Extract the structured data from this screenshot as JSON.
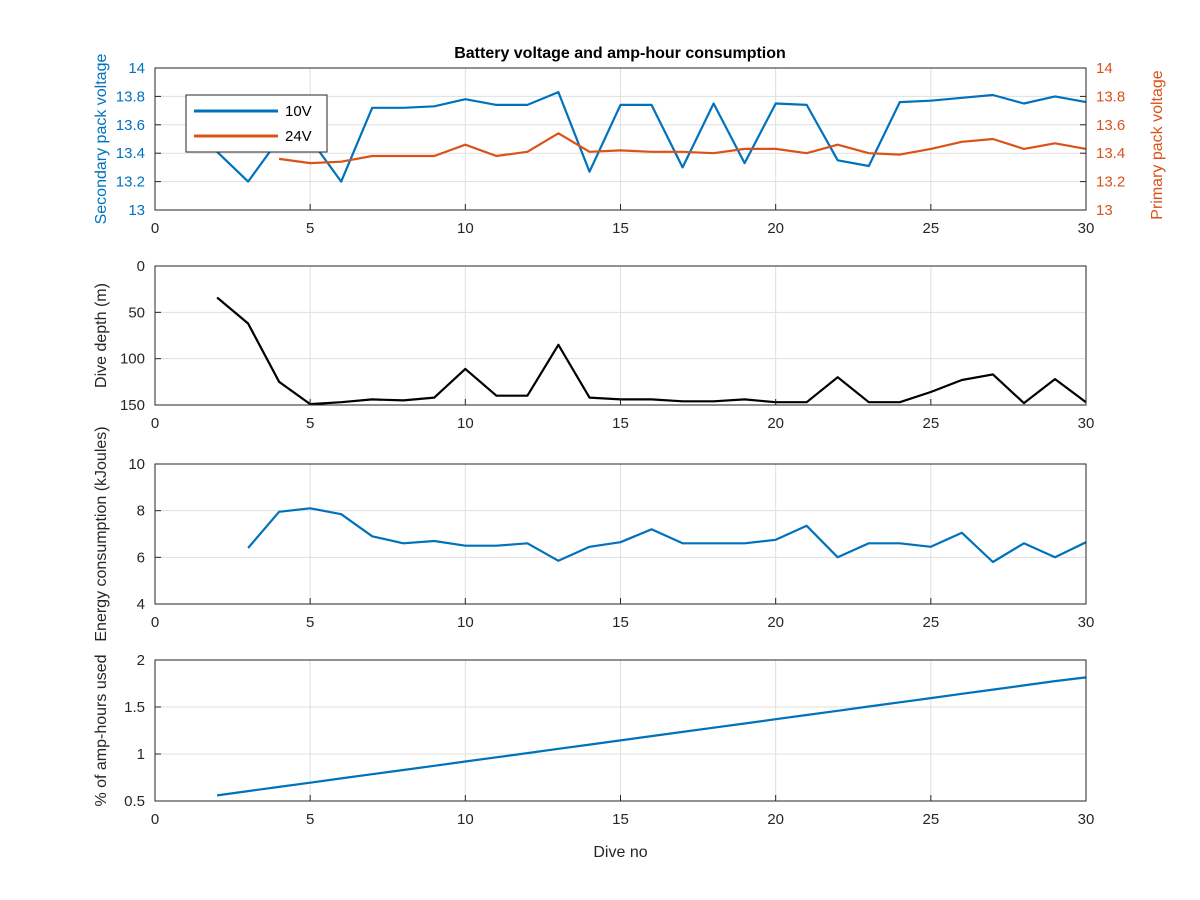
{
  "figure": {
    "title": "Battery voltage and amp-hour consumption"
  },
  "colors": {
    "blue": "#0072bd",
    "orange": "#d95319",
    "black": "#000000",
    "axis": "#262626",
    "grid": "#dfdfdf"
  },
  "chart_data": [
    {
      "type": "line",
      "title": "Battery voltage and amp-hour consumption",
      "xlabel": "",
      "ylabel": "Secondary pack voltage",
      "ylabel_right": "Primary pack voltage",
      "xlim": [
        0,
        30
      ],
      "ylim": [
        13,
        14
      ],
      "ylim_right": [
        13,
        14
      ],
      "xticks": [
        "0",
        "5",
        "10",
        "15",
        "20",
        "25",
        "30"
      ],
      "yticks": [
        "13",
        "13.2",
        "13.4",
        "13.6",
        "13.8",
        "14"
      ],
      "yticks_right": [
        "13",
        "13.2",
        "13.4",
        "13.6",
        "13.8",
        "14"
      ],
      "grid": true,
      "legend": {
        "position": "top-left",
        "entries": [
          "10V",
          "24V"
        ]
      },
      "series": [
        {
          "name": "10V",
          "axis": "left",
          "color": "blue",
          "x": [
            2,
            3,
            4,
            5,
            6,
            7,
            8,
            9,
            10,
            11,
            12,
            13,
            14,
            15,
            16,
            17,
            18,
            19,
            20,
            21,
            22,
            23,
            24,
            25,
            26,
            27,
            28,
            29,
            30
          ],
          "y": [
            13.41,
            13.2,
            13.5,
            13.5,
            13.2,
            13.72,
            13.72,
            13.73,
            13.78,
            13.74,
            13.74,
            13.83,
            13.27,
            13.74,
            13.74,
            13.3,
            13.75,
            13.33,
            13.75,
            13.74,
            13.35,
            13.31,
            13.76,
            13.77,
            13.79,
            13.81,
            13.75,
            13.8,
            13.76
          ]
        },
        {
          "name": "24V",
          "axis": "right",
          "color": "orange",
          "x": [
            4,
            5,
            6,
            7,
            8,
            9,
            10,
            11,
            12,
            13,
            14,
            15,
            16,
            17,
            18,
            19,
            20,
            21,
            22,
            23,
            24,
            25,
            26,
            27,
            28,
            29,
            30
          ],
          "y": [
            13.36,
            13.33,
            13.34,
            13.38,
            13.38,
            13.38,
            13.46,
            13.38,
            13.41,
            13.54,
            13.41,
            13.42,
            13.41,
            13.41,
            13.4,
            13.43,
            13.43,
            13.4,
            13.46,
            13.4,
            13.39,
            13.43,
            13.48,
            13.5,
            13.43,
            13.47,
            13.43
          ]
        }
      ]
    },
    {
      "type": "line",
      "xlabel": "",
      "ylabel": "Dive depth (m)",
      "xlim": [
        0,
        30
      ],
      "ylim": [
        0,
        150
      ],
      "y_reversed": true,
      "xticks": [
        "0",
        "5",
        "10",
        "15",
        "20",
        "25",
        "30"
      ],
      "yticks": [
        "0",
        "50",
        "100",
        "150"
      ],
      "grid": true,
      "series": [
        {
          "color": "black",
          "x": [
            2,
            3,
            4,
            5,
            6,
            7,
            8,
            9,
            10,
            11,
            12,
            13,
            14,
            15,
            16,
            17,
            18,
            19,
            20,
            21,
            22,
            23,
            24,
            25,
            26,
            27,
            28,
            29,
            30
          ],
          "y": [
            34,
            62,
            125,
            149,
            147,
            144,
            145,
            142,
            111,
            140,
            140,
            85,
            142,
            144,
            144,
            146,
            146,
            144,
            147,
            147,
            120,
            147,
            147,
            136,
            123,
            117,
            148,
            122,
            147
          ]
        }
      ]
    },
    {
      "type": "line",
      "xlabel": "",
      "ylabel": "Energy consumption (kJoules)",
      "xlim": [
        0,
        30
      ],
      "ylim": [
        4,
        10
      ],
      "xticks": [
        "0",
        "5",
        "10",
        "15",
        "20",
        "25",
        "30"
      ],
      "yticks": [
        "4",
        "6",
        "8",
        "10"
      ],
      "grid": true,
      "series": [
        {
          "color": "blue",
          "x": [
            3,
            4,
            5,
            6,
            7,
            8,
            9,
            10,
            11,
            12,
            13,
            14,
            15,
            16,
            17,
            18,
            19,
            20,
            21,
            22,
            23,
            24,
            25,
            26,
            27,
            28,
            29,
            30
          ],
          "y": [
            6.4,
            7.95,
            8.1,
            7.85,
            6.9,
            6.6,
            6.7,
            6.5,
            6.5,
            6.6,
            5.85,
            6.45,
            6.65,
            7.2,
            6.6,
            6.6,
            6.6,
            6.75,
            7.35,
            6.0,
            6.6,
            6.6,
            6.45,
            7.05,
            5.8,
            6.6,
            6.0,
            6.65
          ]
        }
      ]
    },
    {
      "type": "line",
      "xlabel": "Dive no",
      "ylabel": "% of amp-hours used",
      "xlim": [
        0,
        30
      ],
      "ylim": [
        0.5,
        2
      ],
      "xticks": [
        "0",
        "5",
        "10",
        "15",
        "20",
        "25",
        "30"
      ],
      "yticks": [
        "0.5",
        "1",
        "1.5",
        "2"
      ],
      "grid": true,
      "series": [
        {
          "color": "blue",
          "x": [
            2,
            3,
            4,
            5,
            6,
            7,
            8,
            9,
            10,
            11,
            12,
            13,
            14,
            15,
            16,
            17,
            18,
            19,
            20,
            21,
            22,
            23,
            24,
            25,
            26,
            27,
            28,
            29,
            30
          ],
          "y": [
            0.56,
            0.605,
            0.65,
            0.695,
            0.74,
            0.785,
            0.83,
            0.875,
            0.92,
            0.965,
            1.01,
            1.055,
            1.1,
            1.145,
            1.19,
            1.235,
            1.28,
            1.325,
            1.37,
            1.415,
            1.46,
            1.505,
            1.55,
            1.595,
            1.64,
            1.685,
            1.73,
            1.775,
            1.815
          ]
        }
      ]
    }
  ]
}
